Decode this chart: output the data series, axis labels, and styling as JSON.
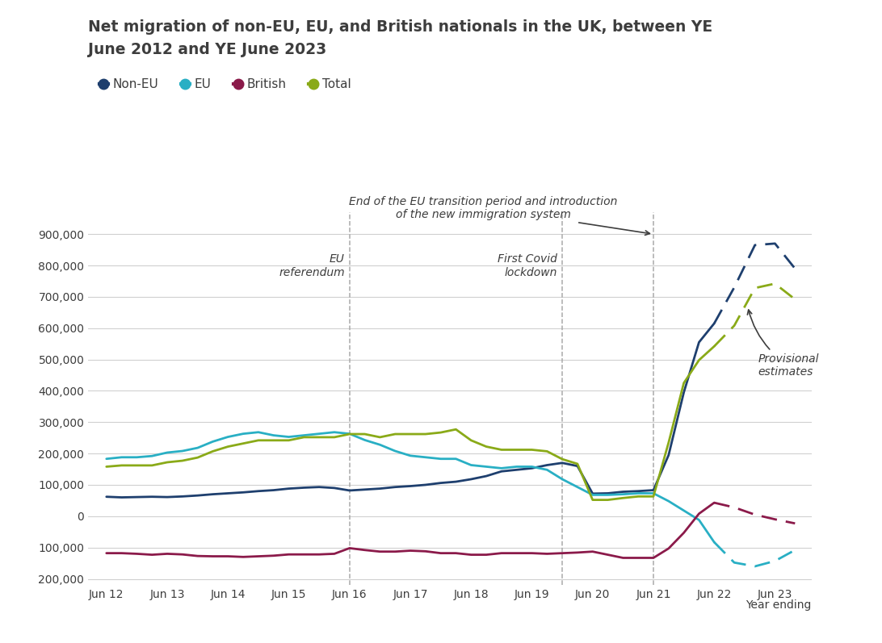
{
  "title_line1": "Net migration of non-EU, EU, and British nationals in the UK, between YE",
  "title_line2": "June 2012 and YE June 2023",
  "xlabel": "Year ending",
  "background_color": "#ffffff",
  "text_color": "#3d3d3d",
  "ylim": [
    -220000,
    970000
  ],
  "yticks": [
    -200000,
    -100000,
    0,
    100000,
    200000,
    300000,
    400000,
    500000,
    600000,
    700000,
    800000,
    900000
  ],
  "colors": {
    "non_eu": "#1e3f6e",
    "eu": "#29afc4",
    "british": "#8b1a4a",
    "total": "#8aaa18"
  },
  "legend": [
    {
      "label": "Non-EU",
      "color": "#1e3f6e"
    },
    {
      "label": "EU",
      "color": "#29afc4"
    },
    {
      "label": "British",
      "color": "#8b1a4a"
    },
    {
      "label": "Total",
      "color": "#8aaa18"
    }
  ],
  "x_labels": [
    "Jun 12",
    "Jun 13",
    "Jun 14",
    "Jun 15",
    "Jun 16",
    "Jun 17",
    "Jun 18",
    "Jun 19",
    "Jun 20",
    "Jun 21",
    "Jun 22",
    "Jun 23"
  ],
  "x_positions": [
    0,
    1,
    2,
    3,
    4,
    5,
    6,
    7,
    8,
    9,
    10,
    11
  ],
  "non_eu_solid_x": [
    0,
    0.25,
    0.5,
    0.75,
    1,
    1.25,
    1.5,
    1.75,
    2,
    2.25,
    2.5,
    2.75,
    3,
    3.25,
    3.5,
    3.75,
    4,
    4.25,
    4.5,
    4.75,
    5,
    5.25,
    5.5,
    5.75,
    6,
    6.25,
    6.5,
    6.75,
    7,
    7.25,
    7.5,
    7.75,
    8,
    8.25,
    8.5,
    8.75,
    9,
    9.25,
    9.5,
    9.75,
    10
  ],
  "non_eu_solid_y": [
    62000,
    60000,
    61000,
    62000,
    61000,
    63000,
    66000,
    70000,
    73000,
    76000,
    80000,
    83000,
    88000,
    91000,
    93000,
    90000,
    82000,
    85000,
    88000,
    93000,
    96000,
    100000,
    106000,
    110000,
    118000,
    128000,
    143000,
    148000,
    153000,
    163000,
    170000,
    160000,
    72000,
    73000,
    78000,
    80000,
    83000,
    195000,
    395000,
    555000,
    615000
  ],
  "non_eu_dashed_x": [
    10,
    10.33,
    10.67,
    11.0,
    11.33
  ],
  "non_eu_dashed_y": [
    615000,
    730000,
    865000,
    870000,
    790000
  ],
  "eu_solid_x": [
    0,
    0.25,
    0.5,
    0.75,
    1,
    1.25,
    1.5,
    1.75,
    2,
    2.25,
    2.5,
    2.75,
    3,
    3.25,
    3.5,
    3.75,
    4,
    4.25,
    4.5,
    4.75,
    5,
    5.25,
    5.5,
    5.75,
    6,
    6.25,
    6.5,
    6.75,
    7,
    7.25,
    7.5,
    7.75,
    8,
    8.25,
    8.5,
    8.75,
    9,
    9.25,
    9.5,
    9.75,
    10
  ],
  "eu_solid_y": [
    183000,
    188000,
    188000,
    192000,
    203000,
    208000,
    218000,
    238000,
    253000,
    263000,
    268000,
    258000,
    253000,
    258000,
    263000,
    268000,
    263000,
    243000,
    228000,
    208000,
    193000,
    188000,
    183000,
    183000,
    163000,
    158000,
    153000,
    158000,
    158000,
    148000,
    118000,
    93000,
    68000,
    68000,
    70000,
    73000,
    73000,
    48000,
    18000,
    -12000,
    -83000
  ],
  "eu_dashed_x": [
    10,
    10.33,
    10.67,
    11.0,
    11.33
  ],
  "eu_dashed_y": [
    -83000,
    -148000,
    -160000,
    -143000,
    -108000
  ],
  "british_solid_x": [
    0,
    0.25,
    0.5,
    0.75,
    1,
    1.25,
    1.5,
    1.75,
    2,
    2.25,
    2.5,
    2.75,
    3,
    3.25,
    3.5,
    3.75,
    4,
    4.25,
    4.5,
    4.75,
    5,
    5.25,
    5.5,
    5.75,
    6,
    6.25,
    6.5,
    6.75,
    7,
    7.25,
    7.5,
    7.75,
    8,
    8.25,
    8.5,
    8.75,
    9,
    9.25,
    9.5,
    9.75,
    10
  ],
  "british_solid_y": [
    -118000,
    -118000,
    -120000,
    -123000,
    -120000,
    -122000,
    -127000,
    -128000,
    -128000,
    -130000,
    -128000,
    -126000,
    -122000,
    -122000,
    -122000,
    -120000,
    -102000,
    -108000,
    -113000,
    -113000,
    -110000,
    -112000,
    -118000,
    -118000,
    -123000,
    -123000,
    -118000,
    -118000,
    -118000,
    -120000,
    -118000,
    -116000,
    -113000,
    -123000,
    -133000,
    -133000,
    -133000,
    -103000,
    -53000,
    8000,
    43000
  ],
  "british_dashed_x": [
    10,
    10.33,
    10.67,
    11.0,
    11.33
  ],
  "british_dashed_y": [
    43000,
    28000,
    5000,
    -10000,
    -23000
  ],
  "total_solid_x": [
    0,
    0.25,
    0.5,
    0.75,
    1,
    1.25,
    1.5,
    1.75,
    2,
    2.25,
    2.5,
    2.75,
    3,
    3.25,
    3.5,
    3.75,
    4,
    4.25,
    4.5,
    4.75,
    5,
    5.25,
    5.5,
    5.75,
    6,
    6.25,
    6.5,
    6.75,
    7,
    7.25,
    7.5,
    7.75,
    8,
    8.25,
    8.5,
    8.75,
    9,
    9.25,
    9.5,
    9.75,
    10
  ],
  "total_solid_y": [
    158000,
    162000,
    162000,
    162000,
    172000,
    177000,
    187000,
    207000,
    222000,
    232000,
    242000,
    242000,
    242000,
    252000,
    252000,
    252000,
    262000,
    262000,
    252000,
    262000,
    262000,
    262000,
    267000,
    277000,
    242000,
    222000,
    212000,
    212000,
    212000,
    207000,
    182000,
    167000,
    52000,
    52000,
    58000,
    63000,
    63000,
    235000,
    425000,
    498000,
    542000
  ],
  "total_dashed_x": [
    10,
    10.33,
    10.67,
    11.0,
    11.33
  ],
  "total_dashed_y": [
    542000,
    608000,
    728000,
    742000,
    692000
  ]
}
